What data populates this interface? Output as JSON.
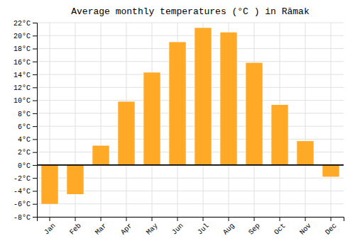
{
  "chart_data": {
    "type": "bar",
    "title": "Average monthly temperatures (°C ) in Rāmak",
    "categories": [
      "Jan",
      "Feb",
      "Mar",
      "Apr",
      "May",
      "Jun",
      "Jul",
      "Aug",
      "Sep",
      "Oct",
      "Nov",
      "Dec"
    ],
    "values": [
      -6.0,
      -4.5,
      3.0,
      9.8,
      14.3,
      19.0,
      21.2,
      20.5,
      15.8,
      9.3,
      3.7,
      -1.8
    ],
    "color": "#FFA927",
    "ylim": [
      -8,
      22
    ],
    "yticks": [
      {
        "value": -8,
        "label": "-8°C"
      },
      {
        "value": -6,
        "label": "-6°C"
      },
      {
        "value": -4,
        "label": "-4°C"
      },
      {
        "value": -2,
        "label": "-2°C"
      },
      {
        "value": 0,
        "label": "0°C"
      },
      {
        "value": 2,
        "label": "2°C"
      },
      {
        "value": 4,
        "label": "4°C"
      },
      {
        "value": 6,
        "label": "6°C"
      },
      {
        "value": 8,
        "label": "8°C"
      },
      {
        "value": 10,
        "label": "10°C"
      },
      {
        "value": 12,
        "label": "12°C"
      },
      {
        "value": 14,
        "label": "14°C"
      },
      {
        "value": 16,
        "label": "16°C"
      },
      {
        "value": 18,
        "label": "18°C"
      },
      {
        "value": 20,
        "label": "20°C"
      },
      {
        "value": 22,
        "label": "22°C"
      }
    ],
    "grid": true
  }
}
